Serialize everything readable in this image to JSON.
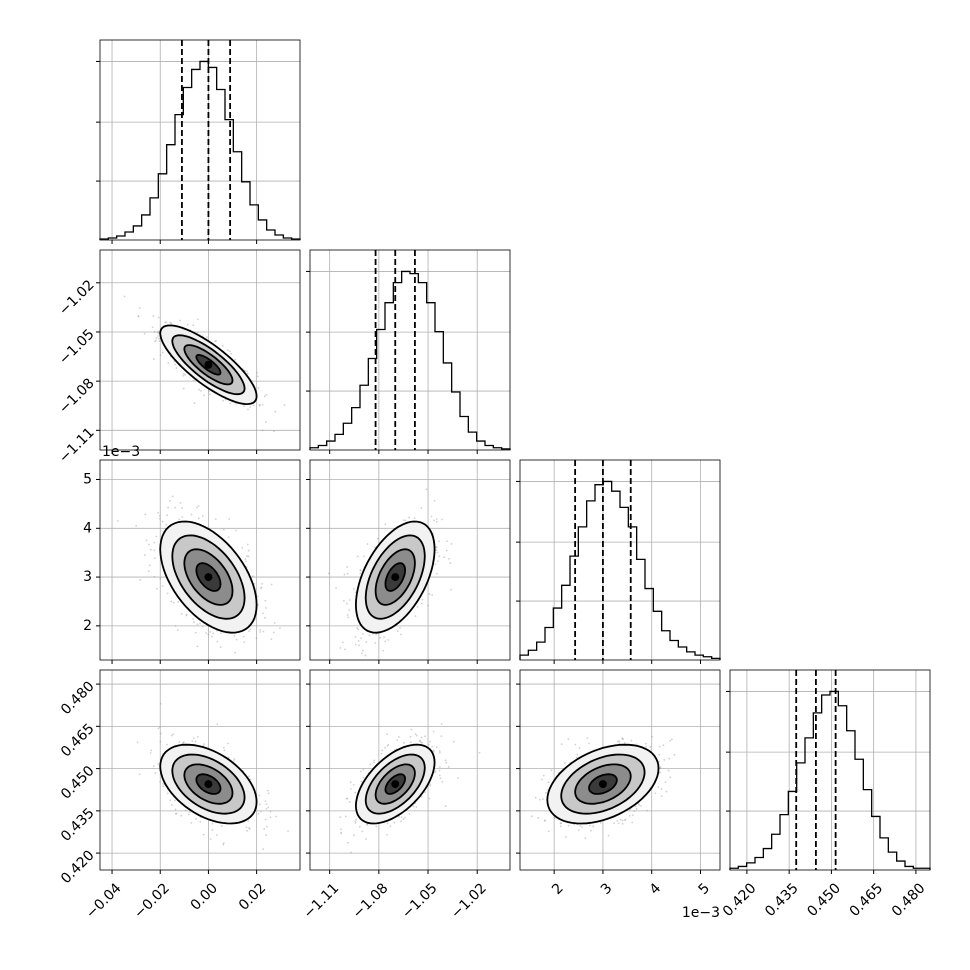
{
  "chart_data": {
    "type": "corner",
    "grid": true,
    "parameters": [
      {
        "range": [
          -0.045,
          0.038
        ],
        "ticks": [
          "−0.04",
          "−0.02",
          "0.00",
          "0.02"
        ],
        "tick_values": [
          -0.04,
          -0.02,
          0.0,
          0.02
        ],
        "quantiles": [
          -0.011,
          0.0,
          0.009
        ],
        "exponent_label": ""
      },
      {
        "range": [
          -1.122,
          -1.0
        ],
        "ticks": [
          "−1.11",
          "−1.08",
          "−1.05",
          "−1.02"
        ],
        "tick_values": [
          -1.11,
          -1.08,
          -1.05,
          -1.02
        ],
        "quantiles": [
          -1.082,
          -1.07,
          -1.058
        ],
        "exponent_label": ""
      },
      {
        "range": [
          1.3,
          5.4
        ],
        "ticks": [
          "2",
          "3",
          "4",
          "5"
        ],
        "tick_values": [
          2,
          3,
          4,
          5
        ],
        "quantiles": [
          2.43,
          3.0,
          3.57
        ],
        "exponent_label": "1e−3"
      },
      {
        "range": [
          0.414,
          0.485
        ],
        "ticks": [
          "0.420",
          "0.435",
          "0.450",
          "0.465",
          "0.480"
        ],
        "tick_values": [
          0.42,
          0.435,
          0.45,
          0.465,
          0.48
        ],
        "quantiles": [
          0.4375,
          0.4445,
          0.4515
        ],
        "exponent_label": ""
      }
    ],
    "marginal_histograms": [
      [
        1,
        2,
        4,
        8,
        14,
        25,
        42,
        66,
        95,
        125,
        152,
        170,
        178,
        172,
        150,
        120,
        88,
        58,
        35,
        20,
        10,
        5,
        2,
        1
      ],
      [
        2,
        4,
        8,
        14,
        24,
        38,
        58,
        82,
        108,
        132,
        150,
        160,
        158,
        150,
        132,
        106,
        78,
        52,
        30,
        16,
        8,
        4,
        2,
        1
      ],
      [
        3,
        6,
        11,
        20,
        32,
        46,
        64,
        82,
        98,
        108,
        110,
        104,
        94,
        82,
        62,
        44,
        30,
        18,
        12,
        8,
        5,
        3,
        2,
        1
      ],
      [
        1,
        2,
        4,
        7,
        12,
        20,
        31,
        44,
        60,
        74,
        88,
        98,
        100,
        92,
        78,
        62,
        45,
        30,
        18,
        10,
        5,
        2,
        1,
        1
      ]
    ],
    "correlations": {
      "1-0": -0.8,
      "2-0": -0.5,
      "2-1": 0.5,
      "3-0": -0.45,
      "3-1": 0.55,
      "3-2": 0.4
    }
  }
}
